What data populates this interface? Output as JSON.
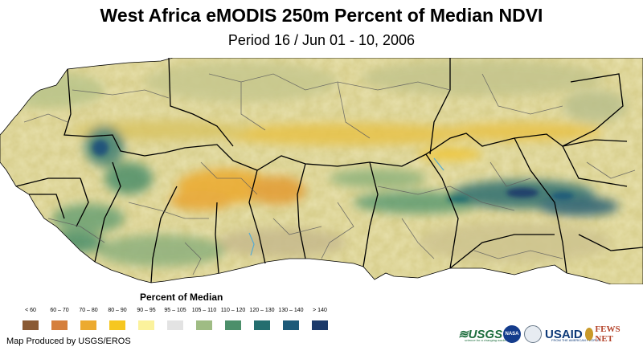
{
  "title": "West Africa eMODIS 250m Percent of Median NDVI",
  "subtitle": "Period 16 / Jun 01 - 10, 2006",
  "legend": {
    "title_prefix": "Percent of ",
    "title_emph": "Median",
    "classes": [
      {
        "label": "< 60",
        "color": "#8a5a34"
      },
      {
        "label": "60 – 70",
        "color": "#d57f3c"
      },
      {
        "label": "70 – 80",
        "color": "#ecaa2f"
      },
      {
        "label": "80 – 90",
        "color": "#f6c720"
      },
      {
        "label": "90 – 95",
        "color": "#fbf29c"
      },
      {
        "label": "95 – 105",
        "color": "#e3e3e3"
      },
      {
        "label": "105 – 110",
        "color": "#9fbc84"
      },
      {
        "label": "110 – 120",
        "color": "#4c8f6a"
      },
      {
        "label": "120 – 130",
        "color": "#246e6f"
      },
      {
        "label": "130 – 140",
        "color": "#1d5a79"
      },
      {
        "label": "> 140",
        "color": "#1c3a6a"
      }
    ]
  },
  "credit": "Map Produced by USGS/EROS",
  "logos": {
    "usgs": "≋USGS",
    "usgs_tag": "science for a changing world",
    "nasa": "NASA",
    "usaid": "USAID",
    "usaid_tag": "FROM THE AMERICAN PEOPLE",
    "fews": "FEWS NET"
  },
  "colors": {
    "land_base": "#d8cf8e",
    "ocean": "#ffffff",
    "border": "#000000",
    "admin": "#6a6a6a"
  }
}
